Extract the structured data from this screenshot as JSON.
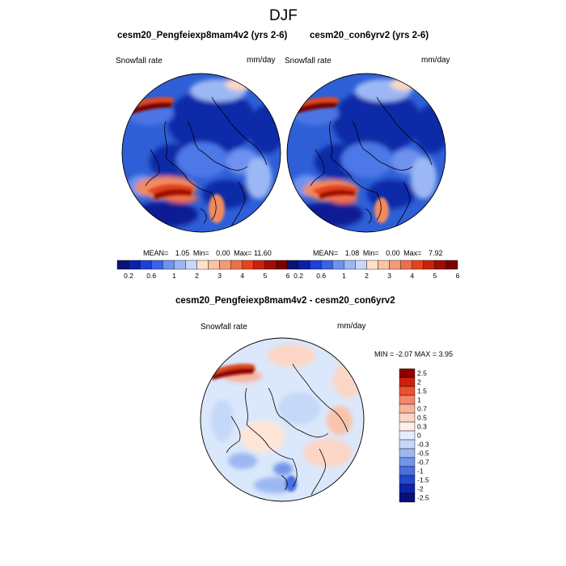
{
  "figure": {
    "season_title": "DJF",
    "colors": {
      "ocean_blue": "#2e5fd6",
      "deep_blue": "#0b1f9e",
      "light_blue": "#bcd4f6",
      "red": "#d83a1a",
      "dark_red": "#8e0000"
    }
  },
  "panel_left": {
    "title": "cesm20_Pengfeiexp8mam4v2 (yrs 2-6)",
    "variable": "Snowfall rate",
    "units": "mm/day",
    "stats": {
      "mean_label": "MEAN=",
      "mean": "1.05",
      "min_label": "Min=",
      "min": "0.00",
      "max_label": "Max=",
      "max": "11.60"
    }
  },
  "panel_right": {
    "title": "cesm20_con6yrv2 (yrs 2-6)",
    "variable": "Snowfall rate",
    "units": "mm/day",
    "stats": {
      "mean_label": "MEAN=",
      "mean": "1.08",
      "min_label": "Min=",
      "min": "0.00",
      "max_label": "Max=",
      "max": "7.92"
    }
  },
  "panel_diff": {
    "title": "cesm20_Pengfeiexp8mam4v2 - cesm20_con6yrv2",
    "variable": "Snowfall rate",
    "units": "mm/day",
    "minmax_text": "MIN =  -2.07 MAX =   3.95"
  },
  "colorbar_horizontal": {
    "colors": [
      "#0a1272",
      "#0b1fa8",
      "#1f3fd6",
      "#3c62e6",
      "#6f92ee",
      "#9cb8f4",
      "#c7d8f8",
      "#fde2c8",
      "#fbc3a4",
      "#f59a78",
      "#ee6f4a",
      "#e5431f",
      "#c7220d",
      "#a00d06",
      "#790000"
    ],
    "tick_labels": [
      "0.2",
      "0.6",
      "1",
      "2",
      "3",
      "4",
      "5",
      "6"
    ]
  },
  "colorbar_vertical": {
    "colors": [
      "#8e0000",
      "#d0200c",
      "#ec5030",
      "#f4866a",
      "#f9b39c",
      "#fbd6c6",
      "#fdeee6",
      "#e3eefc",
      "#c5d8f8",
      "#9cb8f2",
      "#7294ea",
      "#4a6fe0",
      "#2348cc",
      "#0b24a8",
      "#0a0e7a"
    ],
    "tick_labels": [
      "2.5",
      "2",
      "1.5",
      "1",
      "0.7",
      "0.5",
      "0.3",
      "0",
      "-0.3",
      "-0.5",
      "-0.7",
      "-1",
      "-1.5",
      "-2",
      "-2.5"
    ]
  }
}
